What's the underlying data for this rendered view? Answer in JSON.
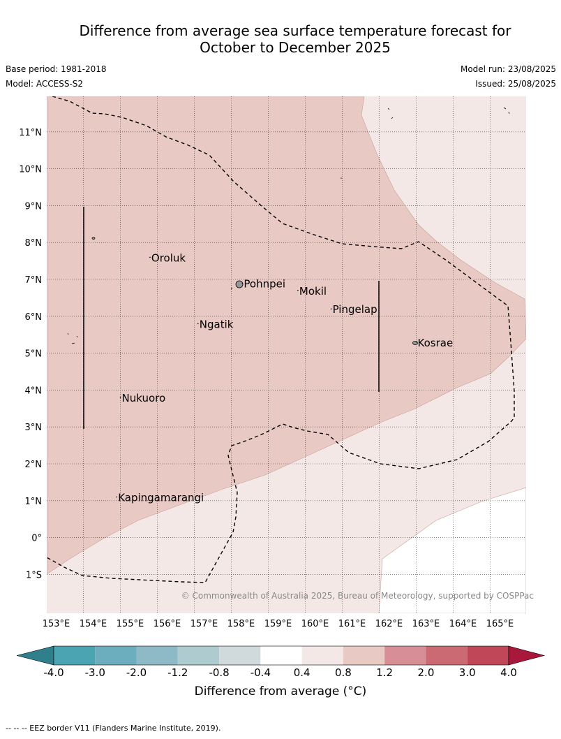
{
  "title": {
    "line1": "Difference from average sea surface temperature forecast for",
    "line2": "October to December 2025"
  },
  "meta": {
    "base_period": "Base period: 1981-2018",
    "model": "Model: ACCESS-S2",
    "model_run": "Model run: 23/08/2025",
    "issued": "Issued: 25/08/2025"
  },
  "map": {
    "lon_range": [
      153,
      166
    ],
    "lat_range": [
      -2,
      12
    ],
    "lon_ticks": [
      "153°E",
      "154°E",
      "155°E",
      "156°E",
      "157°E",
      "158°E",
      "159°E",
      "160°E",
      "161°E",
      "162°E",
      "163°E",
      "164°E",
      "165°E"
    ],
    "lat_ticks": [
      "11°N",
      "10°N",
      "9°N",
      "8°N",
      "7°N",
      "6°N",
      "5°N",
      "4°N",
      "3°N",
      "2°N",
      "1°N",
      "0°",
      "1°S"
    ],
    "places": [
      {
        "name": "Oroluk",
        "lon": 155.8,
        "lat": 7.6
      },
      {
        "name": "Pohnpei",
        "lon": 158.3,
        "lat": 6.9
      },
      {
        "name": "Mokil",
        "lon": 159.8,
        "lat": 6.7
      },
      {
        "name": "Pingelap",
        "lon": 160.7,
        "lat": 6.2
      },
      {
        "name": "Ngatik",
        "lon": 157.1,
        "lat": 5.8
      },
      {
        "name": "Kosrae",
        "lon": 163.0,
        "lat": 5.3
      },
      {
        "name": "Nukuoro",
        "lon": 155.0,
        "lat": 3.8
      },
      {
        "name": "Kapingamarangi",
        "lon": 154.9,
        "lat": 1.1
      }
    ],
    "copyright": "© Commonwealth of Australia 2025, Bureau of Meteorology, supported by COSPPac",
    "colors": {
      "band_0.8_1.2": "#e8c9c4",
      "band_0.4_0.8": "#f4e8e6",
      "band_-0.4_0.4": "#ffffff"
    }
  },
  "colorbar": {
    "label": "Difference from average (°C)",
    "ticks": [
      "-4.0",
      "-3.0",
      "-2.0",
      "-1.2",
      "-0.8",
      "-0.4",
      "0.4",
      "0.8",
      "1.2",
      "2.0",
      "3.0",
      "4.0"
    ],
    "colors": [
      "#2f7f8c",
      "#4aa4b2",
      "#6caebd",
      "#8dbac6",
      "#aecbd0",
      "#d0dadd",
      "#ffffff",
      "#f4e8e6",
      "#e8c9c4",
      "#d78e96",
      "#cc6a74",
      "#c04757",
      "#a8183a"
    ]
  },
  "footnote": "--  --  -- EEZ border V11 (Flanders Marine Institute, 2019)."
}
